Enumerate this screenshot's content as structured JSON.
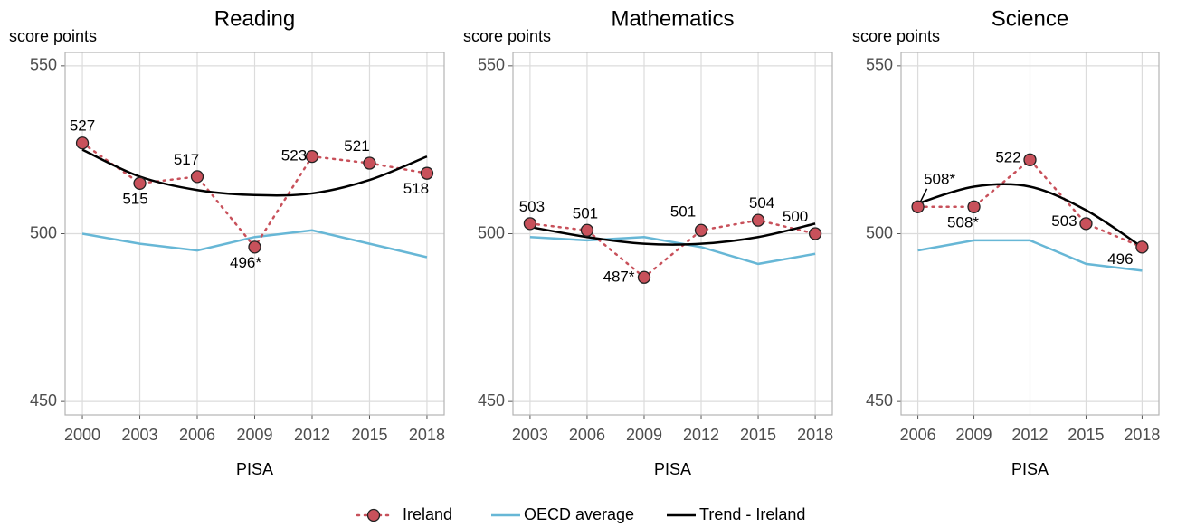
{
  "legend": [
    {
      "name": "Ireland",
      "color": "#c8515b"
    },
    {
      "name": "OECD average",
      "color": "#67b7d6"
    },
    {
      "name": "Trend - Ireland",
      "color": "#000000"
    }
  ],
  "chart_data": [
    {
      "type": "line",
      "title": "Reading",
      "y_label": "score points",
      "x_label": "PISA",
      "x": [
        2000,
        2003,
        2006,
        2009,
        2012,
        2015,
        2018
      ],
      "series": [
        {
          "values": [
            527,
            515,
            517,
            496,
            523,
            521,
            518
          ],
          "value_labels": [
            "527",
            "515",
            "517",
            "496*",
            "523",
            "521",
            "518"
          ]
        },
        {
          "values": [
            500,
            497,
            495,
            499,
            501,
            497,
            493
          ]
        },
        {
          "values": [
            525,
            517,
            513,
            511.5,
            512,
            516,
            523
          ]
        }
      ],
      "xlim": [
        1999.1,
        2018.9
      ],
      "xticks": [
        2000,
        2003,
        2006,
        2009,
        2012,
        2015,
        2018
      ],
      "ylim": [
        446,
        554
      ],
      "yticks": [
        450,
        500,
        550
      ],
      "grid": true
    },
    {
      "type": "line",
      "title": "Mathematics",
      "y_label": "score points",
      "x_label": "PISA",
      "x": [
        2003,
        2006,
        2009,
        2012,
        2015,
        2018
      ],
      "series": [
        {
          "values": [
            503,
            501,
            487,
            501,
            504,
            500
          ],
          "value_labels": [
            "503",
            "501",
            "487*",
            "501",
            "504",
            "500"
          ]
        },
        {
          "values": [
            499,
            498,
            499,
            496,
            491,
            494
          ]
        },
        {
          "values": [
            502,
            499,
            497,
            497,
            499,
            503
          ]
        }
      ],
      "xlim": [
        2002.1,
        2018.9
      ],
      "xticks": [
        2003,
        2006,
        2009,
        2012,
        2015,
        2018
      ],
      "ylim": [
        446,
        554
      ],
      "yticks": [
        450,
        500,
        550
      ],
      "grid": true
    },
    {
      "type": "line",
      "title": "Science",
      "y_label": "score points",
      "x_label": "PISA",
      "x": [
        2006,
        2009,
        2012,
        2015,
        2018
      ],
      "series": [
        {
          "values": [
            508,
            508,
            522,
            503,
            496
          ],
          "value_labels": [
            "508*",
            "508*",
            "522",
            "503",
            "496"
          ]
        },
        {
          "values": [
            495,
            498,
            498,
            491,
            489
          ]
        },
        {
          "values": [
            509,
            514,
            514,
            507,
            496
          ]
        }
      ],
      "xlim": [
        2005.1,
        2018.9
      ],
      "xticks": [
        2006,
        2009,
        2012,
        2015,
        2018
      ],
      "ylim": [
        446,
        554
      ],
      "yticks": [
        450,
        500,
        550
      ],
      "grid": true
    }
  ]
}
